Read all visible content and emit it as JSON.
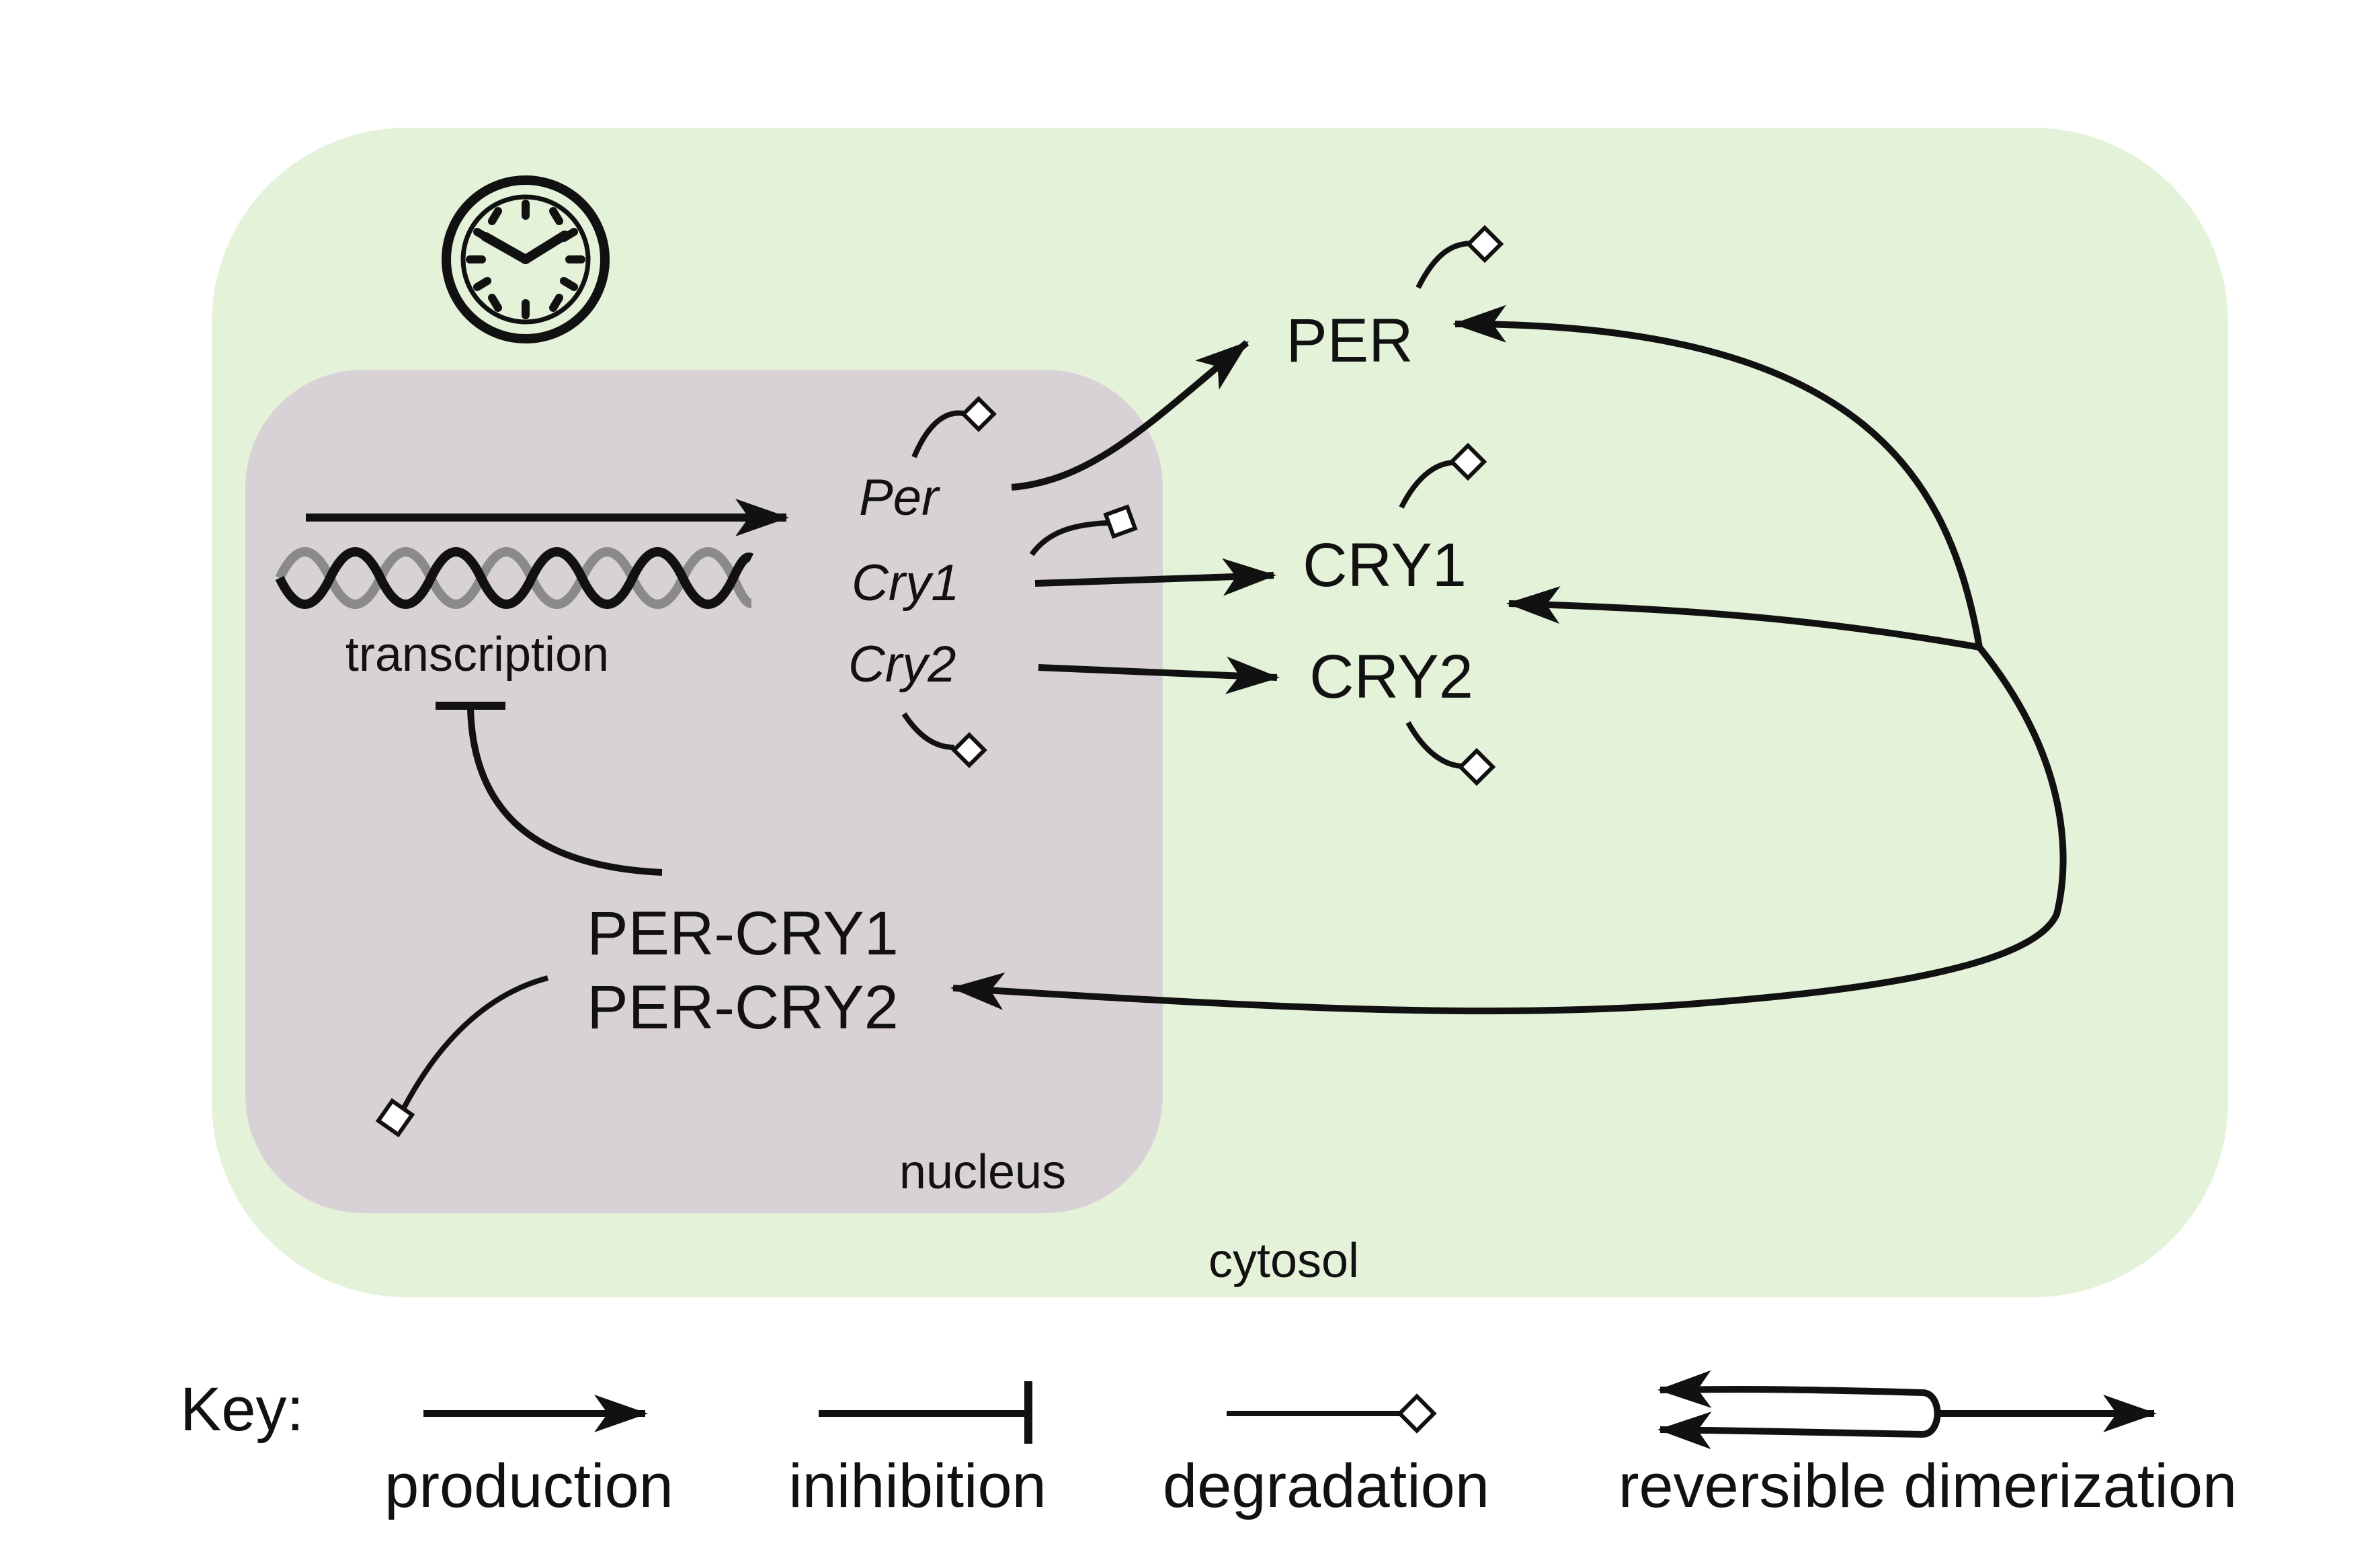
{
  "compartments": {
    "cytosol_label": "cytosol",
    "nucleus_label": "nucleus",
    "cytosol_color": "#e4f2d9",
    "nucleus_color": "#d8d2d6"
  },
  "nucleus": {
    "transcription_label": "transcription",
    "genes": {
      "per": "Per",
      "cry1": "Cry1",
      "cry2": "Cry2"
    },
    "complexes": {
      "per_cry1": "PER-CRY1",
      "per_cry2": "PER-CRY2"
    }
  },
  "cytosol": {
    "proteins": {
      "per": "PER",
      "cry1": "CRY1",
      "cry2": "CRY2"
    }
  },
  "icons": {
    "clock": "clock-icon",
    "dna": "dna-helix-icon"
  },
  "key": {
    "title": "Key:",
    "production": "production",
    "inhibition": "inihibition",
    "degradation": "degradation",
    "reversible_dimerization": "reversible dimerization"
  },
  "colors": {
    "stroke": "#111111",
    "helix_back": "#8a8a8a",
    "degradation_fill": "#ffffff"
  }
}
